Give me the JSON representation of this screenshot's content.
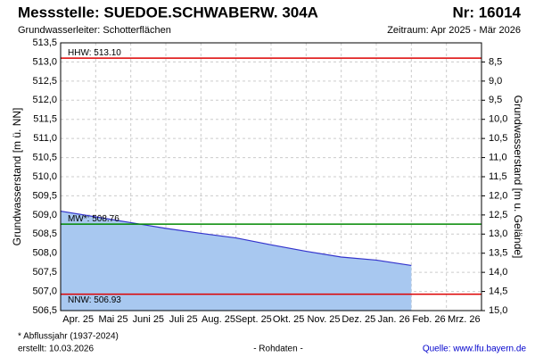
{
  "header": {
    "title": "Messstelle: SUEDOE.SCHWABERW. 304A",
    "number": "Nr: 16014",
    "aquifer": "Grundwasserleiter:   Schotterflächen",
    "period": "Zeitraum: Apr 2025 - Mär 2026"
  },
  "chart_data": {
    "type": "area",
    "ylabel": "Grundwasserstand [m ü. NN]",
    "y2label": "Grundwasserstand [m u. Gelände]",
    "categories": [
      "Apr. 25",
      "Mai 25",
      "Juni 25",
      "Juli 25",
      "Aug. 25",
      "Sept. 25",
      "Okt. 25",
      "Nov. 25",
      "Dez. 25",
      "Jan. 26",
      "Feb. 26",
      "Mrz. 26"
    ],
    "series": [
      {
        "name": "Grundwasserstand",
        "color": "#3333cc",
        "fill": "#a8c8f0",
        "values": [
          509.1,
          508.95,
          508.8,
          508.65,
          508.52,
          508.4,
          508.22,
          508.05,
          507.9,
          507.82,
          507.68,
          null
        ]
      }
    ],
    "ylim": [
      506.5,
      513.5
    ],
    "yticks": [
      {
        "value": 506.5,
        "label": "506,5"
      },
      {
        "value": 507.0,
        "label": "507,0"
      },
      {
        "value": 507.5,
        "label": "507,5"
      },
      {
        "value": 508.0,
        "label": "508,0"
      },
      {
        "value": 508.5,
        "label": "508,5"
      },
      {
        "value": 509.0,
        "label": "509,0"
      },
      {
        "value": 509.5,
        "label": "509,5"
      },
      {
        "value": 510.0,
        "label": "510,0"
      },
      {
        "value": 510.5,
        "label": "510,5"
      },
      {
        "value": 511.0,
        "label": "511,0"
      },
      {
        "value": 511.5,
        "label": "511,5"
      },
      {
        "value": 512.0,
        "label": "512,0"
      },
      {
        "value": 512.5,
        "label": "512,5"
      },
      {
        "value": 513.0,
        "label": "513,0"
      },
      {
        "value": 513.5,
        "label": "513,5"
      }
    ],
    "y2lim": [
      15.0,
      8.0
    ],
    "y2ticks": [
      {
        "value": 8.5,
        "label": "8,5"
      },
      {
        "value": 9.0,
        "label": "9,0"
      },
      {
        "value": 9.5,
        "label": "9,5"
      },
      {
        "value": 10.0,
        "label": "10,0"
      },
      {
        "value": 10.5,
        "label": "10,5"
      },
      {
        "value": 11.0,
        "label": "11,0"
      },
      {
        "value": 11.5,
        "label": "11,5"
      },
      {
        "value": 12.0,
        "label": "12,0"
      },
      {
        "value": 12.5,
        "label": "12,5"
      },
      {
        "value": 13.0,
        "label": "13,0"
      },
      {
        "value": 13.5,
        "label": "13,5"
      },
      {
        "value": 14.0,
        "label": "14,0"
      },
      {
        "value": 14.5,
        "label": "14,5"
      },
      {
        "value": 15.0,
        "label": "15,0"
      }
    ],
    "reference_lines": [
      {
        "value": 513.1,
        "label": "HHW: 513.10",
        "color": "#dd0000"
      },
      {
        "value": 508.76,
        "label": "MW*: 508.76",
        "color": "#008800"
      },
      {
        "value": 506.93,
        "label": "NNW: 506.93",
        "color": "#dd0000"
      }
    ],
    "grid": true
  },
  "footer": {
    "note": "* Abflussjahr (1937-2024)",
    "created": "erstellt:  10.03.2026",
    "status": "- Rohdaten -",
    "source": "Quelle: www.lfu.bayern.de"
  }
}
